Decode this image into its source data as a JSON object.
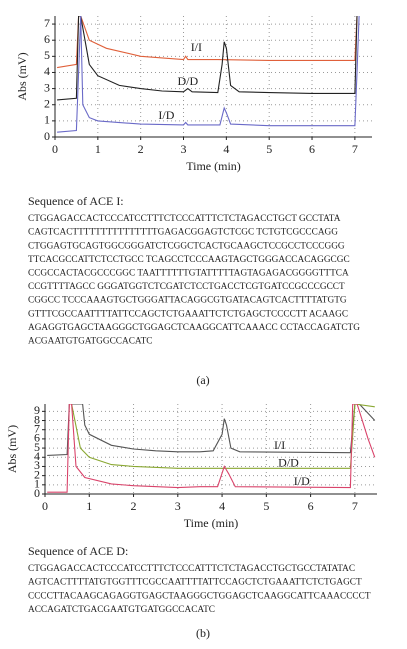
{
  "chart_data": [
    {
      "type": "line",
      "x_label": "Time (min)",
      "y_label": "Abs (mV)",
      "xlim": [
        0,
        7.4
      ],
      "ylim": [
        0,
        7.5
      ],
      "xticks": [
        0,
        1,
        2,
        3,
        4,
        5,
        6,
        7
      ],
      "yticks": [
        0,
        1,
        2,
        3,
        4,
        5,
        6,
        7
      ],
      "grid": true,
      "series": [
        {
          "name": "I/I",
          "color": "#e0603a",
          "x": [
            0.05,
            0.5,
            0.55,
            0.6,
            0.8,
            1.2,
            2,
            3,
            3.05,
            3.1,
            3.8,
            5,
            6,
            7,
            7.05
          ],
          "values": [
            4.3,
            4.5,
            7.5,
            7.5,
            6,
            5.5,
            5,
            4.8,
            5,
            4.8,
            4.8,
            4.75,
            4.75,
            4.75,
            7.5
          ]
        },
        {
          "name": "D/D",
          "color": "#222222",
          "x": [
            0.05,
            0.5,
            0.55,
            0.6,
            0.8,
            1,
            1.5,
            2,
            2.5,
            3,
            3.1,
            3.2,
            3.8,
            3.9,
            3.95,
            4,
            4.1,
            4.3,
            5,
            6,
            7,
            7.05
          ],
          "values": [
            2.3,
            2.4,
            7.5,
            7.5,
            4.5,
            3.8,
            3.2,
            3,
            2.85,
            2.8,
            3,
            2.8,
            2.75,
            4.5,
            5.9,
            5.5,
            3.2,
            2.8,
            2.75,
            2.7,
            2.7,
            7.5
          ]
        },
        {
          "name": "I/D",
          "color": "#6a6ac8",
          "x": [
            0.05,
            0.5,
            0.55,
            0.6,
            0.65,
            0.8,
            1,
            2,
            3,
            3.05,
            3.1,
            3.85,
            3.95,
            4,
            4.1,
            5,
            7,
            7.05,
            7.1
          ],
          "values": [
            0.3,
            0.4,
            4,
            7.5,
            2,
            1.2,
            1,
            0.8,
            0.75,
            0.9,
            0.75,
            0.75,
            1.8,
            1.5,
            0.8,
            0.7,
            0.7,
            4,
            7.5
          ]
        }
      ]
    },
    {
      "type": "line",
      "x_label": "Time (min)",
      "y_label": "Abs (mV)",
      "xlim": [
        0,
        7.5
      ],
      "ylim": [
        0,
        9.8
      ],
      "xticks": [
        0,
        1,
        2,
        3,
        4,
        5,
        6,
        7
      ],
      "yticks": [
        0,
        1,
        2,
        3,
        4,
        5,
        6,
        7,
        8,
        9
      ],
      "grid": true,
      "series": [
        {
          "name": "I/I",
          "color": "#555555",
          "x": [
            0.05,
            0.5,
            0.55,
            0.85,
            0.9,
            1,
            1.5,
            2,
            2.5,
            3,
            3.5,
            3.8,
            4,
            4.05,
            4.1,
            4.2,
            4.4,
            6.9,
            7,
            7.1,
            7.45
          ],
          "values": [
            4.2,
            4.3,
            9.8,
            9.8,
            7.5,
            6.5,
            5.3,
            4.9,
            4.7,
            4.6,
            4.6,
            4.7,
            6.5,
            8.2,
            7.5,
            5,
            4.6,
            4.5,
            9.8,
            9.8,
            8
          ]
        },
        {
          "name": "D/D",
          "color": "#8aa832",
          "x": [
            0.6,
            0.8,
            1,
            1.5,
            2,
            3,
            4,
            6.9,
            7,
            7.45
          ],
          "values": [
            9.8,
            5,
            4,
            3.2,
            3,
            2.8,
            2.8,
            2.8,
            9.8,
            9.5
          ]
        },
        {
          "name": "I/D",
          "color": "#d9436a",
          "x": [
            0.05,
            0.5,
            0.55,
            0.6,
            0.7,
            0.9,
            1.5,
            2,
            3,
            3.5,
            3.9,
            4.05,
            4.15,
            4.3,
            6.9,
            6.95,
            7.05,
            7.3,
            7.45
          ],
          "values": [
            0.2,
            0.2,
            9.8,
            9.8,
            3,
            1.8,
            1.1,
            0.9,
            0.7,
            0.8,
            0.8,
            3,
            2.2,
            0.8,
            0.7,
            9.8,
            9.8,
            6,
            4
          ]
        }
      ]
    }
  ],
  "sequences": [
    {
      "title": "Sequence of ACE I:",
      "lines": [
        "CTGGAGACCACTCCCATCCTTTCTCCCATTTCTCTAGACCTGCT GCCTATA",
        "CAGTCACTTTTTTTTTTTTTTTGAGACGGAGTCTCGC TCTGTCGCCCAGG",
        "CTGGAGTGCAGTGGCGGGATCTCGGCTCACTGCAAGCTCCGCCTCCCGGG",
        "TTCACGCCATTCTCCTGCC TCAGCCTCCCAAGTAGCTGGGACCACAGGCGC",
        "CCGCCACTACGCCCGGC TAATTTTTTGTATTTTTAGTAGAGACGGGGTTTCA",
        "CCGTTTTAGCC GGGATGGTCTCGATCTCCTGACCTCGTGATCCGCCCGCCT",
        "CGGCC TCCCAAAGTGCTGGGATTACAGGCGTGATACAGTCACTTTTATGTG",
        "GTTTCGCCAATTTTATTCCAGCTCTGAAATTCTCTGAGCTCCCCTT ACAAGC",
        "AGAGGTGAGCTAAGGGCTGGAGCTCAAGGCATTCAAACC CCTACCAGATCTG",
        "ACGAATGTGATGGCCACATC"
      ]
    },
    {
      "title": "Sequence of ACE D:",
      "lines": [
        "CTGGAGACCACTCCCATCCTTTCTCCCATTTCTCTAGACCTGCTGCCTATATAC",
        "AGTCACTTTTATGTGGTTTCGCCAATTTTATTCCAGCTCTGAAATTCTCTGAGCT",
        "CCCCTTACAAGCAGAGGTGAGCTAAGGGCTGGAGCTCAAGGCATTCAAACCCCT",
        "ACCAGATCTGACGAATGTGATGGCCACATC"
      ]
    }
  ],
  "captions": [
    "(a)",
    "(b)"
  ]
}
